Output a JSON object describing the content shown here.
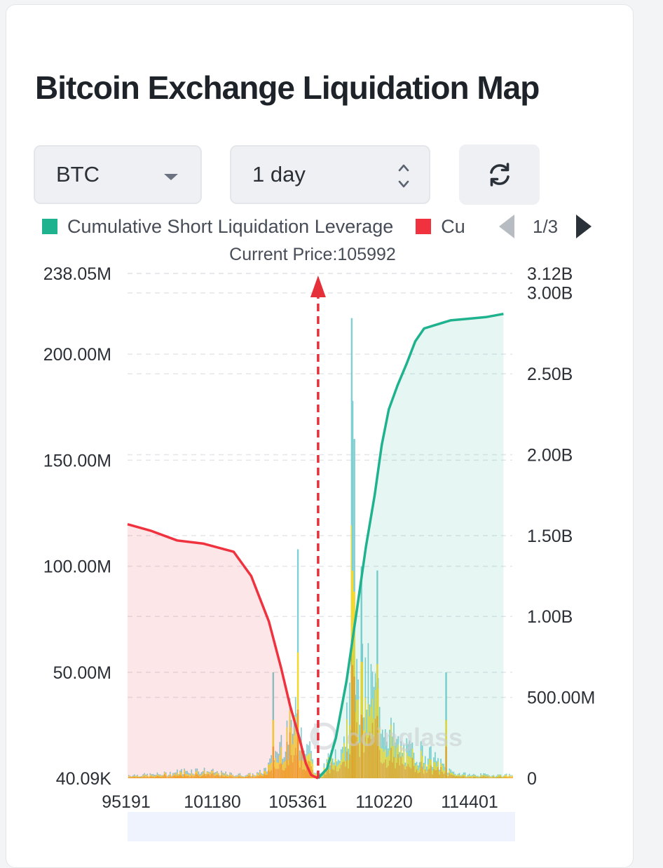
{
  "title": "Bitcoin Exchange Liquidation Map",
  "controls": {
    "coin": "BTC",
    "range": "1 day",
    "refresh_icon": "refresh-icon"
  },
  "legend": {
    "short_label": "Cumulative Short Liquidation Leverage",
    "long_label_visible": "Cu",
    "short_color": "#1fb28e",
    "long_color": "#f0323f",
    "page": "1/3"
  },
  "current_price_label": "Current Price:105992",
  "chart_data": {
    "type": "bar",
    "current_price": 105992,
    "x_ticks": [
      95191,
      101180,
      105361,
      110220,
      114401
    ],
    "xlim": [
      95191,
      117000
    ],
    "left_axis": {
      "ticks": [
        40090,
        50000000,
        100000000,
        150000000,
        200000000,
        238050000
      ],
      "tick_labels": [
        "40.09K",
        "50.00M",
        "100.00M",
        "150.00M",
        "200.00M",
        "238.05M"
      ],
      "min": 40090,
      "max": 238050000
    },
    "right_axis": {
      "ticks": [
        0,
        500000000,
        1000000000,
        1500000000,
        2000000000,
        2500000000,
        3000000000,
        3120000000
      ],
      "tick_labels": [
        "0",
        "500.00M",
        "1.00B",
        "1.50B",
        "2.00B",
        "2.50B",
        "3.00B",
        "3.12B"
      ],
      "min": 0,
      "max": 3120000000
    },
    "cumulative_long": {
      "x": [
        95191,
        96500,
        98000,
        99500,
        101200,
        102200,
        103200,
        103900,
        104400,
        104900,
        105300,
        105600,
        105992
      ],
      "y": [
        1570000000,
        1530000000,
        1470000000,
        1450000000,
        1400000000,
        1250000000,
        970000000,
        680000000,
        450000000,
        260000000,
        90000000,
        20000000,
        0
      ]
    },
    "cumulative_short": {
      "x": [
        105992,
        106500,
        107000,
        107600,
        108200,
        108700,
        109200,
        109600,
        110000,
        110500,
        111000,
        111500,
        112000,
        112600,
        113500,
        114500,
        115500,
        116500
      ],
      "y": [
        0,
        60000000,
        250000000,
        600000000,
        1050000000,
        1430000000,
        1750000000,
        2060000000,
        2280000000,
        2430000000,
        2560000000,
        2700000000,
        2780000000,
        2800000000,
        2830000000,
        2840000000,
        2850000000,
        2870000000
      ]
    },
    "peak_bars": [
      {
        "x": 104800,
        "value": 108000000
      },
      {
        "x": 107850,
        "value": 217000000
      },
      {
        "x": 107900,
        "value": 178000000
      },
      {
        "x": 108000,
        "value": 160000000
      },
      {
        "x": 108400,
        "value": 100000000
      },
      {
        "x": 109300,
        "value": 98000000
      },
      {
        "x": 103400,
        "value": 50000000
      },
      {
        "x": 113200,
        "value": 50000000
      }
    ],
    "bar_colors": [
      "#f5a623",
      "#f8d92a",
      "#7fcfd3"
    ],
    "watermark": "coinglass"
  }
}
